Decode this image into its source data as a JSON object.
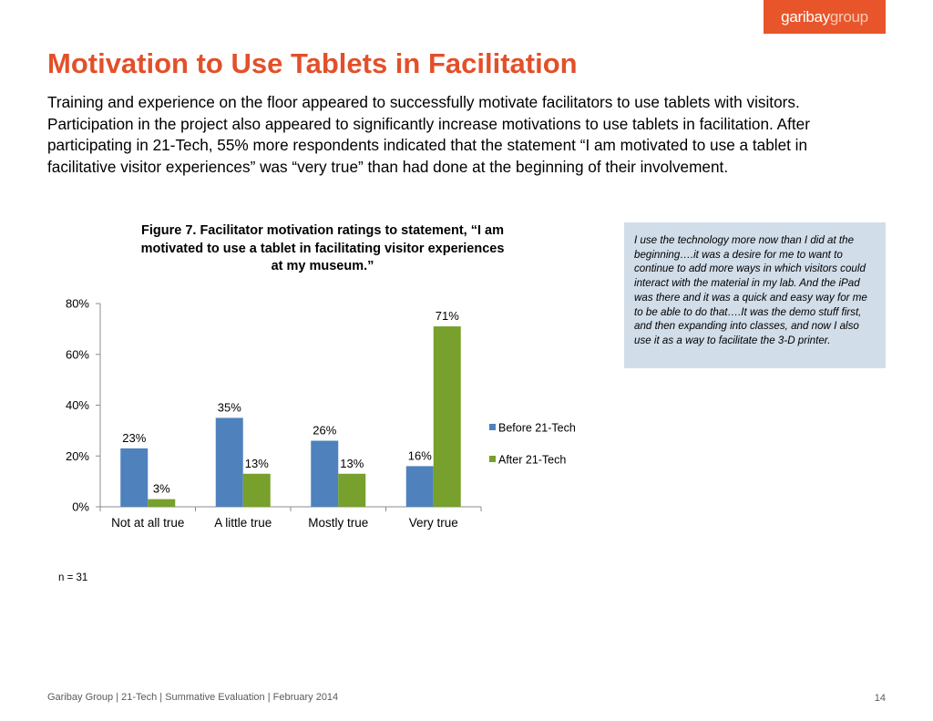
{
  "logo": {
    "part1": "garibay",
    "part2": "group"
  },
  "title": "Motivation to Use Tablets in Facilitation",
  "intro": "Training and experience on the floor appeared to successfully motivate facilitators to use tablets with visitors. Participation in the project also appeared to significantly increase motivations to use tablets in facilitation. After participating in 21-Tech, 55% more respondents indicated that the statement “I am motivated to use a tablet in facilitative visitor experiences” was “very true” than had done at the beginning of their involvement.",
  "chart_data": {
    "type": "bar",
    "title": "Figure 7. Facilitator motivation ratings to statement, “I am motivated to use a tablet in facilitating visitor experiences at my museum.”",
    "categories": [
      "Not at all true",
      "A little true",
      "Mostly true",
      "Very true"
    ],
    "series": [
      {
        "name": "Before 21-Tech",
        "values": [
          23,
          35,
          26,
          16
        ],
        "color": "#4f81bd"
      },
      {
        "name": "After 21-Tech",
        "values": [
          3,
          13,
          13,
          71
        ],
        "color": "#77a02c"
      }
    ],
    "value_suffix": "%",
    "ylim": [
      0,
      80
    ],
    "yticks": [
      0,
      20,
      40,
      60,
      80
    ],
    "ytick_labels": [
      "0%",
      "20%",
      "40%",
      "60%",
      "80%"
    ],
    "xlabel": "",
    "ylabel": "",
    "grid": false,
    "legend": "right"
  },
  "quote": "I use the technology more now than I did at the beginning….it was a desire for me to want to continue to add more ways in which visitors could interact with the material in my lab. And the iPad was there and it was a quick and easy way for me to be able to do that….It was the demo stuff first, and then expanding into classes, and now I also use it as a way to facilitate the 3-D printer.",
  "sample_note": "n = 31",
  "footer": "Garibay Group | 21-Tech | Summative Evaluation | February 2014",
  "page_number": "14"
}
